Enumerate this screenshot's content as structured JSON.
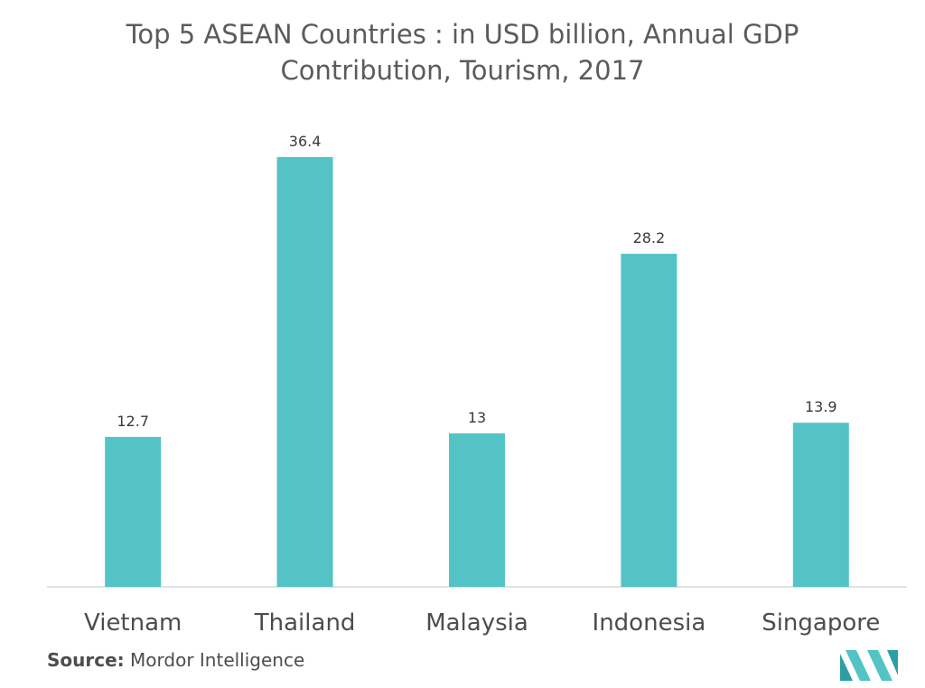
{
  "chart_data": {
    "type": "bar",
    "title": "Top 5 ASEAN Countries : in USD billion, Annual GDP Contribution, Tourism, 2017",
    "categories": [
      "Vietnam",
      "Thailand",
      "Malaysia",
      "Indonesia",
      "Singapore"
    ],
    "values": [
      12.7,
      36.4,
      13,
      28.2,
      13.9
    ],
    "value_labels": [
      "12.7",
      "36.4",
      "13",
      "28.2",
      "13.9"
    ],
    "xlabel": "",
    "ylabel": "",
    "ylim": [
      0,
      40
    ],
    "grid": false,
    "legend": "none",
    "bar_color": "#53c3c5"
  },
  "source": {
    "label": "Source:",
    "text": "Mordor Intelligence"
  },
  "colors": {
    "title": "#5b5b5b",
    "axis_labels": "#4d4d4d",
    "value_labels": "#3a3a3a",
    "baseline": "#d9d9d9",
    "logo": "#53c3c5"
  }
}
